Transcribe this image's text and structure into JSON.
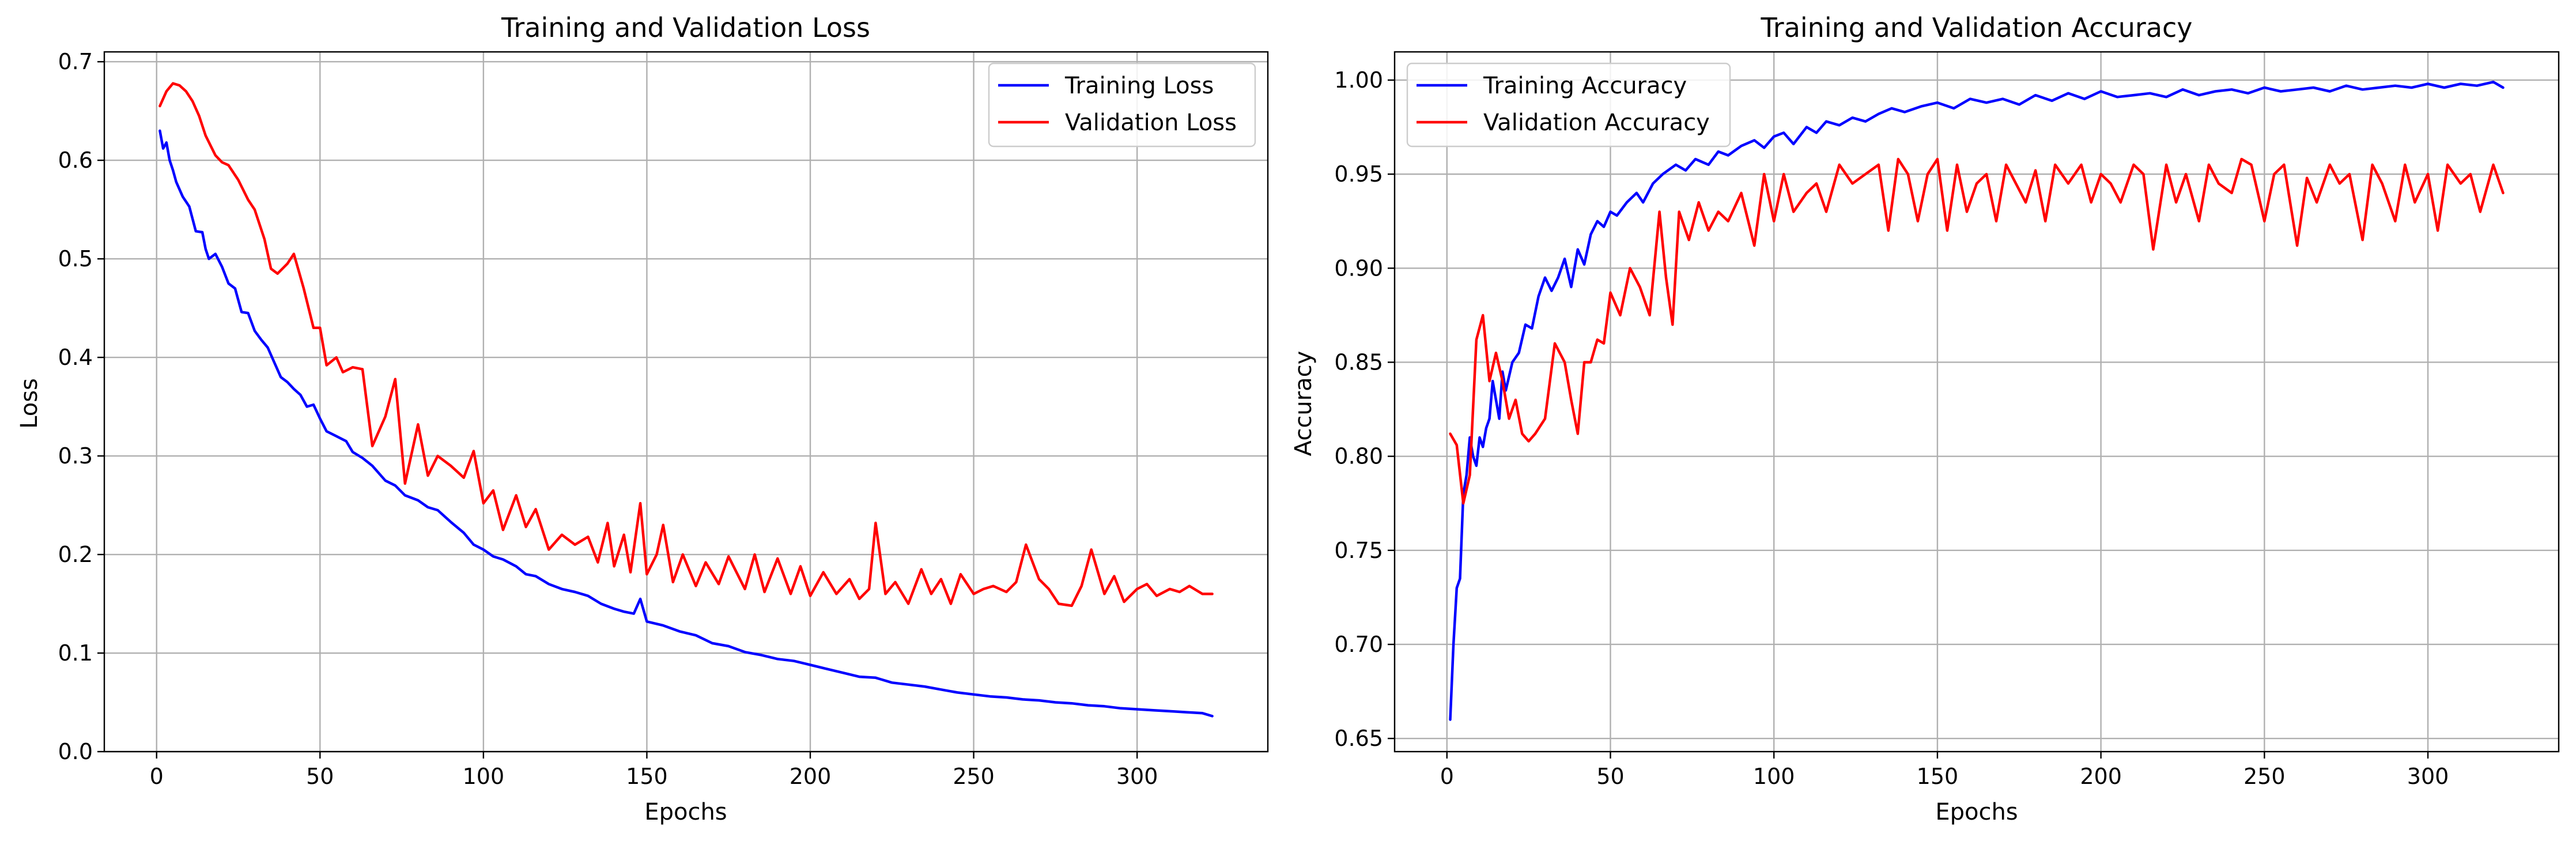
{
  "chart_data": [
    {
      "type": "line",
      "title": "Training and Validation Loss",
      "xlabel": "Epochs",
      "ylabel": "Loss",
      "xlim": [
        -16,
        340
      ],
      "ylim": [
        0.0,
        0.71
      ],
      "xticks": [
        0,
        50,
        100,
        150,
        200,
        250,
        300
      ],
      "yticks": [
        0.0,
        0.1,
        0.2,
        0.3,
        0.4,
        0.5,
        0.6,
        0.7
      ],
      "ytick_decimals": 1,
      "grid": true,
      "legend_position": "top-right",
      "series": [
        {
          "name": "Training Loss",
          "color": "#0000ff",
          "x": [
            1,
            2,
            3,
            4,
            5,
            6,
            8,
            10,
            12,
            14,
            15,
            16,
            18,
            20,
            22,
            24,
            26,
            28,
            30,
            32,
            34,
            36,
            38,
            40,
            42,
            44,
            46,
            48,
            50,
            52,
            55,
            58,
            60,
            63,
            66,
            70,
            73,
            76,
            80,
            83,
            86,
            90,
            94,
            97,
            100,
            103,
            106,
            110,
            113,
            116,
            120,
            124,
            128,
            132,
            136,
            140,
            143,
            146,
            148,
            150,
            155,
            160,
            165,
            170,
            175,
            180,
            185,
            190,
            195,
            200,
            205,
            210,
            215,
            220,
            225,
            230,
            235,
            240,
            245,
            250,
            255,
            260,
            265,
            270,
            275,
            280,
            285,
            290,
            295,
            300,
            305,
            310,
            315,
            320,
            323
          ],
          "y": [
            0.63,
            0.612,
            0.618,
            0.6,
            0.59,
            0.578,
            0.563,
            0.553,
            0.528,
            0.527,
            0.51,
            0.5,
            0.505,
            0.492,
            0.475,
            0.47,
            0.446,
            0.445,
            0.427,
            0.418,
            0.41,
            0.395,
            0.38,
            0.375,
            0.368,
            0.362,
            0.35,
            0.352,
            0.338,
            0.325,
            0.32,
            0.315,
            0.304,
            0.298,
            0.29,
            0.275,
            0.27,
            0.26,
            0.255,
            0.248,
            0.245,
            0.233,
            0.222,
            0.21,
            0.205,
            0.198,
            0.195,
            0.188,
            0.18,
            0.178,
            0.17,
            0.165,
            0.162,
            0.158,
            0.15,
            0.145,
            0.142,
            0.14,
            0.155,
            0.132,
            0.128,
            0.122,
            0.118,
            0.11,
            0.107,
            0.101,
            0.098,
            0.094,
            0.092,
            0.088,
            0.084,
            0.08,
            0.076,
            0.075,
            0.07,
            0.068,
            0.066,
            0.063,
            0.06,
            0.058,
            0.056,
            0.055,
            0.053,
            0.052,
            0.05,
            0.049,
            0.047,
            0.046,
            0.044,
            0.043,
            0.042,
            0.041,
            0.04,
            0.039,
            0.036
          ]
        },
        {
          "name": "Validation Loss",
          "color": "#ff0000",
          "x": [
            1,
            3,
            5,
            7,
            9,
            11,
            13,
            15,
            18,
            20,
            22,
            25,
            28,
            30,
            33,
            35,
            37,
            40,
            42,
            45,
            48,
            50,
            52,
            55,
            57,
            60,
            63,
            66,
            70,
            73,
            76,
            80,
            83,
            86,
            90,
            94,
            97,
            100,
            103,
            106,
            110,
            113,
            116,
            120,
            124,
            128,
            132,
            135,
            138,
            140,
            143,
            145,
            148,
            150,
            153,
            155,
            158,
            161,
            165,
            168,
            172,
            175,
            180,
            183,
            186,
            190,
            194,
            197,
            200,
            204,
            208,
            212,
            215,
            218,
            220,
            223,
            226,
            230,
            234,
            237,
            240,
            243,
            246,
            250,
            253,
            256,
            260,
            263,
            266,
            270,
            273,
            276,
            280,
            283,
            286,
            290,
            293,
            296,
            300,
            303,
            306,
            310,
            313,
            316,
            320,
            323
          ],
          "y": [
            0.655,
            0.67,
            0.678,
            0.676,
            0.67,
            0.66,
            0.645,
            0.625,
            0.605,
            0.598,
            0.595,
            0.58,
            0.56,
            0.55,
            0.52,
            0.49,
            0.485,
            0.495,
            0.505,
            0.47,
            0.43,
            0.43,
            0.392,
            0.4,
            0.385,
            0.39,
            0.388,
            0.31,
            0.34,
            0.378,
            0.272,
            0.332,
            0.28,
            0.3,
            0.29,
            0.278,
            0.305,
            0.252,
            0.265,
            0.225,
            0.26,
            0.228,
            0.246,
            0.205,
            0.22,
            0.21,
            0.218,
            0.192,
            0.232,
            0.188,
            0.22,
            0.182,
            0.252,
            0.18,
            0.2,
            0.23,
            0.172,
            0.2,
            0.168,
            0.192,
            0.17,
            0.198,
            0.165,
            0.2,
            0.162,
            0.196,
            0.16,
            0.188,
            0.158,
            0.182,
            0.16,
            0.175,
            0.155,
            0.165,
            0.232,
            0.16,
            0.172,
            0.15,
            0.185,
            0.16,
            0.175,
            0.15,
            0.18,
            0.16,
            0.165,
            0.168,
            0.162,
            0.172,
            0.21,
            0.175,
            0.165,
            0.15,
            0.148,
            0.168,
            0.205,
            0.16,
            0.178,
            0.152,
            0.165,
            0.17,
            0.158,
            0.165,
            0.162,
            0.168,
            0.16,
            0.16
          ]
        }
      ]
    },
    {
      "type": "line",
      "title": "Training and Validation Accuracy",
      "xlabel": "Epochs",
      "ylabel": "Accuracy",
      "xlim": [
        -16,
        340
      ],
      "ylim": [
        0.643,
        1.015
      ],
      "xticks": [
        0,
        50,
        100,
        150,
        200,
        250,
        300
      ],
      "yticks": [
        0.65,
        0.7,
        0.75,
        0.8,
        0.85,
        0.9,
        0.95,
        1.0
      ],
      "ytick_decimals": 2,
      "grid": true,
      "legend_position": "top-left",
      "series": [
        {
          "name": "Training Accuracy",
          "color": "#0000ff",
          "x": [
            1,
            2,
            3,
            4,
            5,
            6,
            7,
            8,
            9,
            10,
            11,
            12,
            13,
            14,
            15,
            16,
            17,
            18,
            20,
            22,
            24,
            26,
            28,
            30,
            32,
            34,
            36,
            38,
            40,
            42,
            44,
            46,
            48,
            50,
            52,
            55,
            58,
            60,
            63,
            66,
            70,
            73,
            76,
            80,
            83,
            86,
            90,
            94,
            97,
            100,
            103,
            106,
            110,
            113,
            116,
            120,
            124,
            128,
            132,
            136,
            140,
            145,
            150,
            155,
            160,
            165,
            170,
            175,
            180,
            185,
            190,
            195,
            200,
            205,
            210,
            215,
            220,
            225,
            230,
            235,
            240,
            245,
            250,
            255,
            260,
            265,
            270,
            275,
            280,
            285,
            290,
            295,
            300,
            305,
            310,
            315,
            320,
            323
          ],
          "y": [
            0.66,
            0.7,
            0.73,
            0.735,
            0.78,
            0.79,
            0.81,
            0.8,
            0.795,
            0.81,
            0.805,
            0.815,
            0.82,
            0.84,
            0.83,
            0.82,
            0.845,
            0.835,
            0.85,
            0.855,
            0.87,
            0.868,
            0.885,
            0.895,
            0.888,
            0.895,
            0.905,
            0.89,
            0.91,
            0.902,
            0.918,
            0.925,
            0.922,
            0.93,
            0.928,
            0.935,
            0.94,
            0.935,
            0.945,
            0.95,
            0.955,
            0.952,
            0.958,
            0.955,
            0.962,
            0.96,
            0.965,
            0.968,
            0.964,
            0.97,
            0.972,
            0.966,
            0.975,
            0.972,
            0.978,
            0.976,
            0.98,
            0.978,
            0.982,
            0.985,
            0.983,
            0.986,
            0.988,
            0.985,
            0.99,
            0.988,
            0.99,
            0.987,
            0.992,
            0.989,
            0.993,
            0.99,
            0.994,
            0.991,
            0.992,
            0.993,
            0.991,
            0.995,
            0.992,
            0.994,
            0.995,
            0.993,
            0.996,
            0.994,
            0.995,
            0.996,
            0.994,
            0.997,
            0.995,
            0.996,
            0.997,
            0.996,
            0.998,
            0.996,
            0.998,
            0.997,
            0.999,
            0.996
          ]
        },
        {
          "name": "Validation Accuracy",
          "color": "#ff0000",
          "x": [
            1,
            3,
            5,
            7,
            9,
            11,
            13,
            15,
            17,
            19,
            21,
            23,
            25,
            27,
            30,
            33,
            36,
            38,
            40,
            42,
            44,
            46,
            48,
            50,
            53,
            56,
            59,
            62,
            65,
            67,
            69,
            71,
            74,
            77,
            80,
            83,
            86,
            90,
            94,
            97,
            100,
            103,
            106,
            110,
            113,
            116,
            120,
            124,
            128,
            132,
            135,
            138,
            141,
            144,
            147,
            150,
            153,
            156,
            159,
            162,
            165,
            168,
            171,
            174,
            177,
            180,
            183,
            186,
            190,
            194,
            197,
            200,
            203,
            206,
            210,
            213,
            216,
            220,
            223,
            226,
            230,
            233,
            236,
            240,
            243,
            246,
            250,
            253,
            256,
            260,
            263,
            266,
            270,
            273,
            276,
            280,
            283,
            286,
            290,
            293,
            296,
            300,
            303,
            306,
            310,
            313,
            316,
            320,
            323
          ],
          "y": [
            0.812,
            0.806,
            0.775,
            0.79,
            0.862,
            0.875,
            0.84,
            0.855,
            0.84,
            0.82,
            0.83,
            0.812,
            0.808,
            0.812,
            0.82,
            0.86,
            0.85,
            0.83,
            0.812,
            0.85,
            0.85,
            0.862,
            0.86,
            0.887,
            0.875,
            0.9,
            0.89,
            0.875,
            0.93,
            0.895,
            0.87,
            0.93,
            0.915,
            0.935,
            0.92,
            0.93,
            0.925,
            0.94,
            0.912,
            0.95,
            0.925,
            0.95,
            0.93,
            0.94,
            0.945,
            0.93,
            0.955,
            0.945,
            0.95,
            0.955,
            0.92,
            0.958,
            0.95,
            0.925,
            0.95,
            0.958,
            0.92,
            0.955,
            0.93,
            0.945,
            0.95,
            0.925,
            0.955,
            0.945,
            0.935,
            0.952,
            0.925,
            0.955,
            0.945,
            0.955,
            0.935,
            0.95,
            0.945,
            0.935,
            0.955,
            0.95,
            0.91,
            0.955,
            0.935,
            0.95,
            0.925,
            0.955,
            0.945,
            0.94,
            0.958,
            0.955,
            0.925,
            0.95,
            0.955,
            0.912,
            0.948,
            0.935,
            0.955,
            0.945,
            0.95,
            0.915,
            0.955,
            0.945,
            0.925,
            0.955,
            0.935,
            0.95,
            0.92,
            0.955,
            0.945,
            0.95,
            0.93,
            0.955,
            0.94
          ]
        }
      ]
    }
  ]
}
